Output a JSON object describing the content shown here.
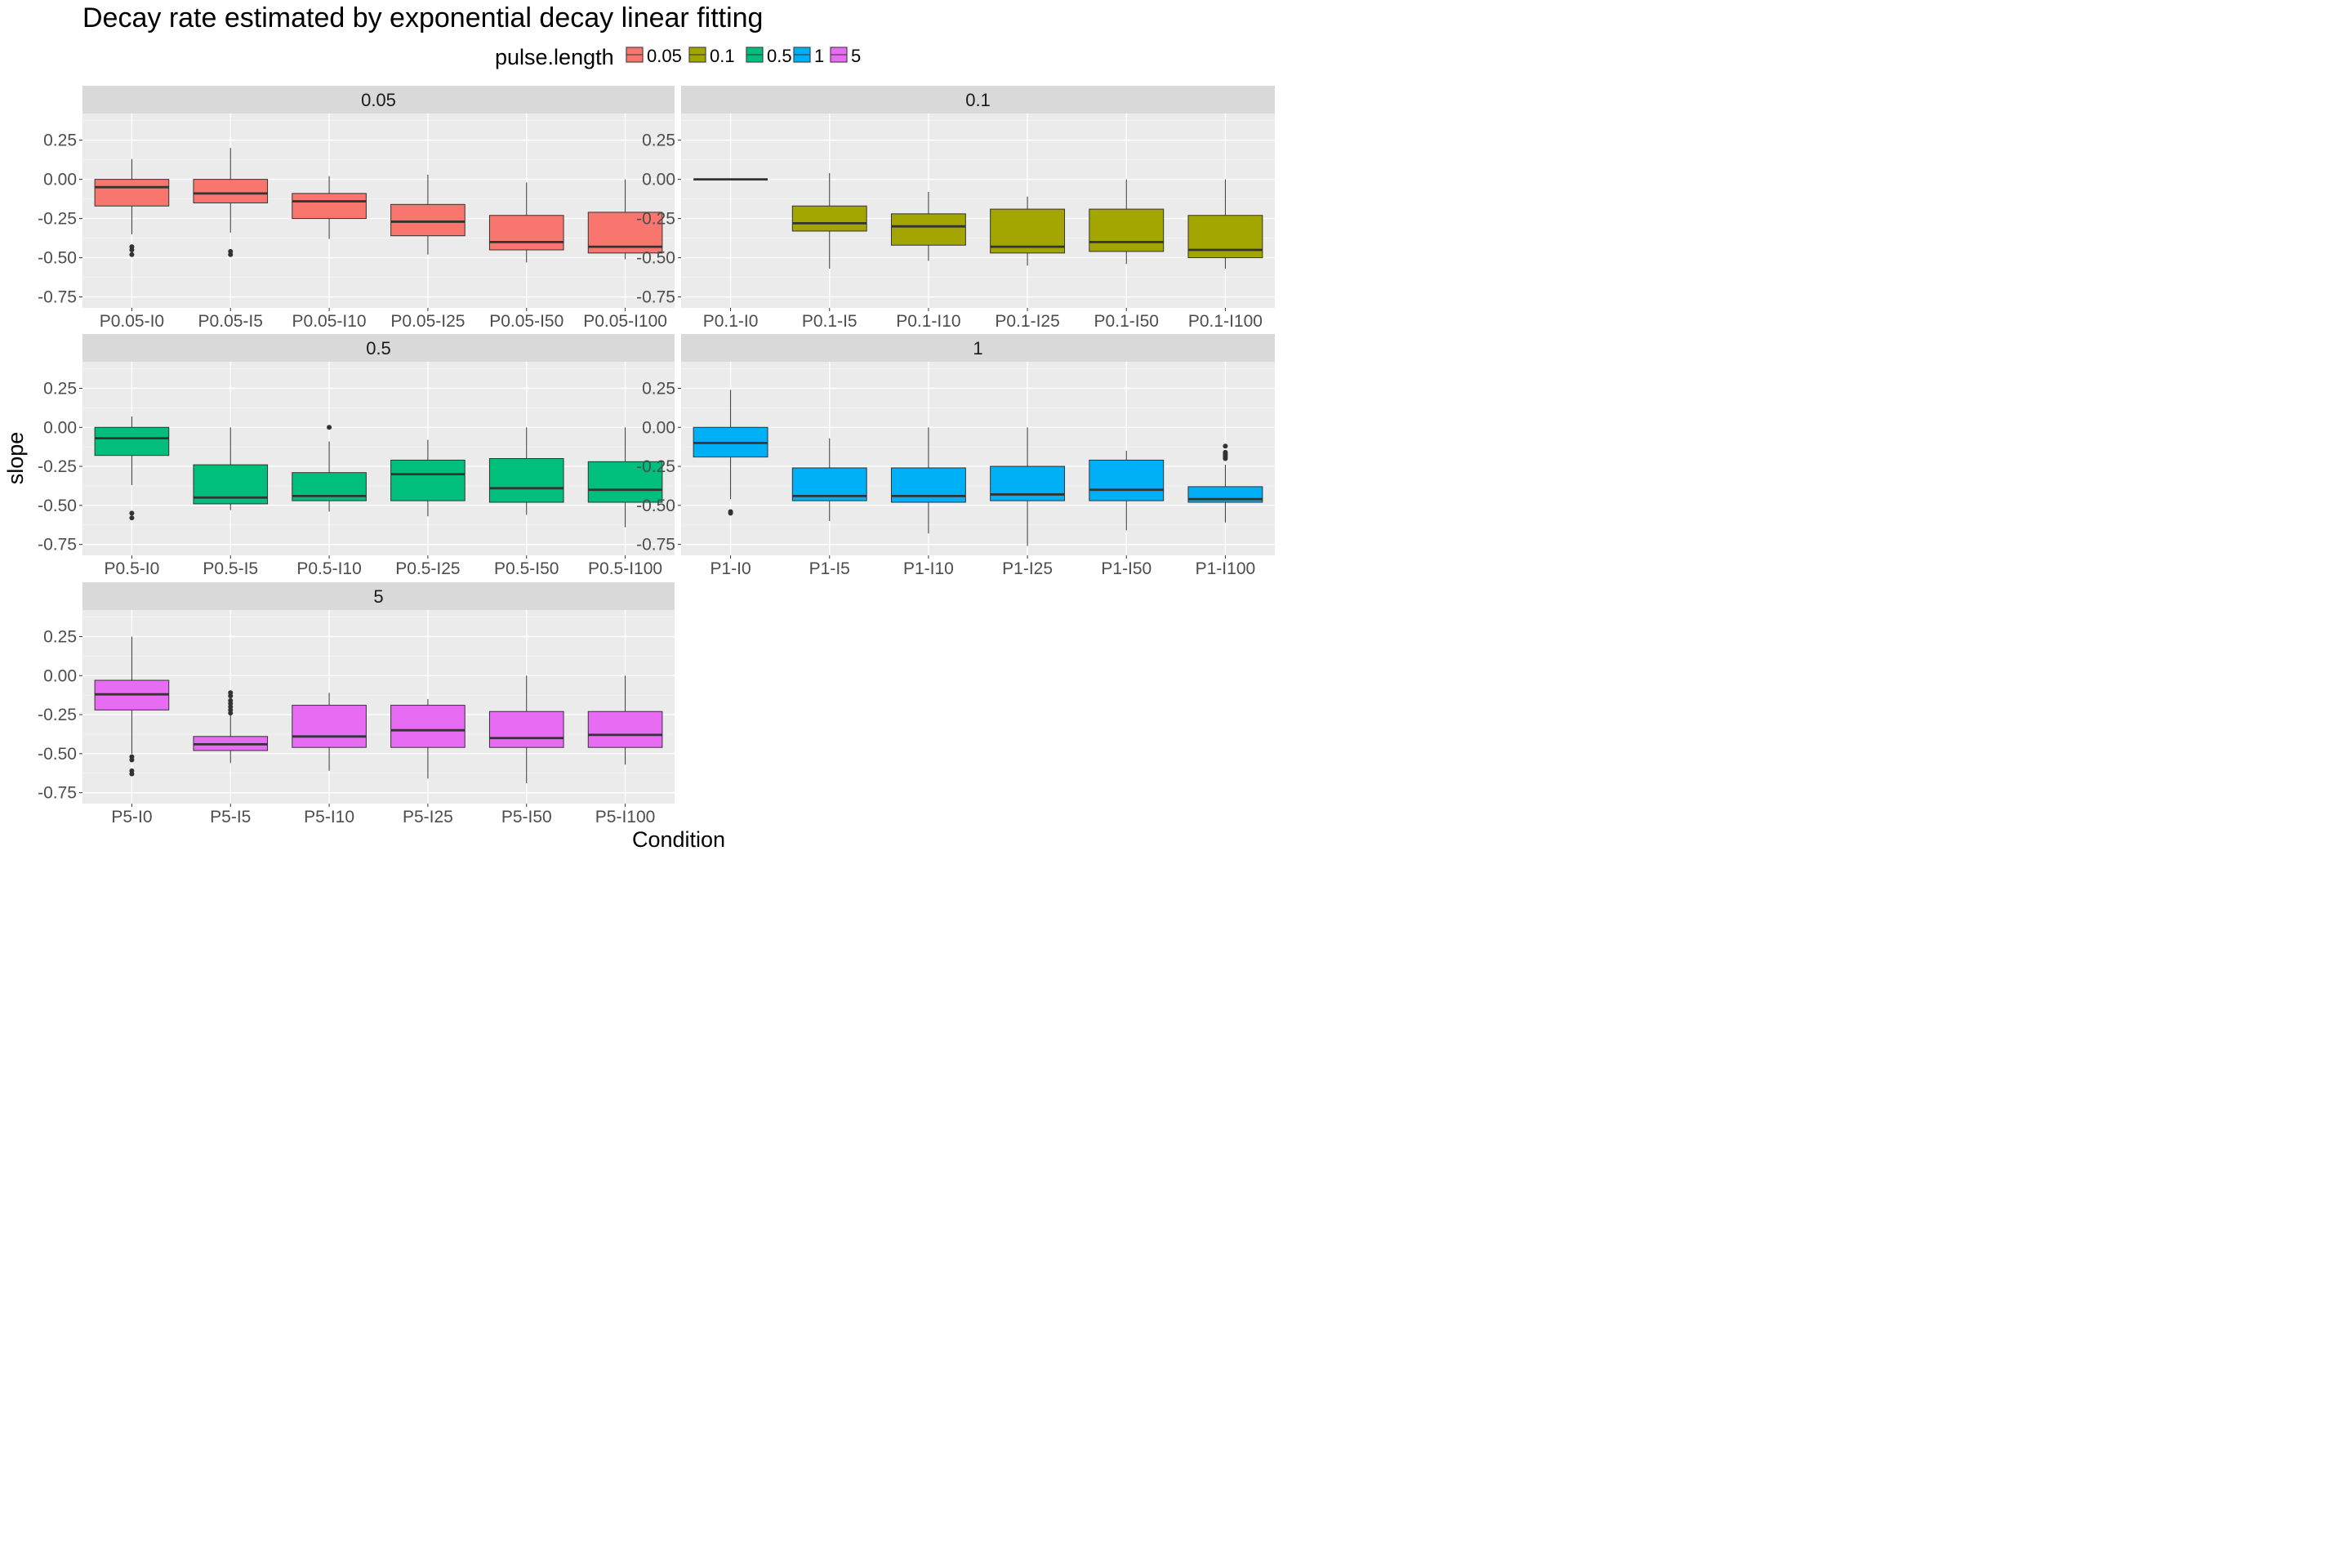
{
  "chart_data": {
    "type": "boxplot",
    "title": "Decay rate estimated by exponential decay linear fitting",
    "xlabel": "Condition",
    "ylabel": "slope",
    "ylim": [
      -0.82,
      0.42
    ],
    "yticks": [
      0.25,
      0.0,
      -0.25,
      -0.5,
      -0.75
    ],
    "ytick_labels": [
      "0.25",
      "0.00",
      "-0.25",
      "-0.50",
      "-0.75"
    ],
    "grid": true,
    "legend": {
      "title": "pulse.length",
      "position": "top",
      "entries": [
        {
          "label": "0.05",
          "color": "#F8766D"
        },
        {
          "label": "0.1",
          "color": "#A3A500"
        },
        {
          "label": "0.5",
          "color": "#00BF7D"
        },
        {
          "label": "1",
          "color": "#00B0F6"
        },
        {
          "label": "5",
          "color": "#E76BF3"
        }
      ]
    },
    "facets": [
      {
        "strip": "0.05",
        "color": "#F8766D",
        "categories": [
          "P0.05-I0",
          "P0.05-I5",
          "P0.05-I10",
          "P0.05-I25",
          "P0.05-I50",
          "P0.05-I100"
        ],
        "boxes": [
          {
            "lower_whisker": -0.35,
            "q1": -0.17,
            "median": -0.05,
            "q3": 0.0,
            "upper_whisker": 0.13,
            "outliers": [
              -0.43,
              -0.45,
              -0.48
            ]
          },
          {
            "lower_whisker": -0.34,
            "q1": -0.15,
            "median": -0.09,
            "q3": 0.0,
            "upper_whisker": 0.2,
            "outliers": [
              -0.46,
              -0.48
            ]
          },
          {
            "lower_whisker": -0.38,
            "q1": -0.25,
            "median": -0.14,
            "q3": -0.09,
            "upper_whisker": 0.02,
            "outliers": []
          },
          {
            "lower_whisker": -0.48,
            "q1": -0.36,
            "median": -0.27,
            "q3": -0.16,
            "upper_whisker": 0.03,
            "outliers": []
          },
          {
            "lower_whisker": -0.53,
            "q1": -0.45,
            "median": -0.4,
            "q3": -0.23,
            "upper_whisker": -0.02,
            "outliers": []
          },
          {
            "lower_whisker": -0.51,
            "q1": -0.47,
            "median": -0.43,
            "q3": -0.21,
            "upper_whisker": 0.0,
            "outliers": []
          }
        ]
      },
      {
        "strip": "0.1",
        "color": "#A3A500",
        "categories": [
          "P0.1-I0",
          "P0.1-I5",
          "P0.1-I10",
          "P0.1-I25",
          "P0.1-I50",
          "P0.1-I100"
        ],
        "boxes": [
          {
            "lower_whisker": 0.0,
            "q1": 0.0,
            "median": 0.0,
            "q3": 0.0,
            "upper_whisker": 0.0,
            "outliers": []
          },
          {
            "lower_whisker": -0.57,
            "q1": -0.33,
            "median": -0.28,
            "q3": -0.17,
            "upper_whisker": 0.04,
            "outliers": []
          },
          {
            "lower_whisker": -0.52,
            "q1": -0.42,
            "median": -0.3,
            "q3": -0.22,
            "upper_whisker": -0.08,
            "outliers": []
          },
          {
            "lower_whisker": -0.55,
            "q1": -0.47,
            "median": -0.43,
            "q3": -0.19,
            "upper_whisker": -0.11,
            "outliers": []
          },
          {
            "lower_whisker": -0.54,
            "q1": -0.46,
            "median": -0.4,
            "q3": -0.19,
            "upper_whisker": 0.0,
            "outliers": []
          },
          {
            "lower_whisker": -0.57,
            "q1": -0.5,
            "median": -0.45,
            "q3": -0.23,
            "upper_whisker": 0.0,
            "outliers": []
          }
        ]
      },
      {
        "strip": "0.5",
        "color": "#00BF7D",
        "categories": [
          "P0.5-I0",
          "P0.5-I5",
          "P0.5-I10",
          "P0.5-I25",
          "P0.5-I50",
          "P0.5-I100"
        ],
        "boxes": [
          {
            "lower_whisker": -0.37,
            "q1": -0.18,
            "median": -0.07,
            "q3": 0.0,
            "upper_whisker": 0.07,
            "outliers": [
              -0.55,
              -0.58
            ]
          },
          {
            "lower_whisker": -0.53,
            "q1": -0.49,
            "median": -0.45,
            "q3": -0.24,
            "upper_whisker": 0.0,
            "outliers": []
          },
          {
            "lower_whisker": -0.54,
            "q1": -0.47,
            "median": -0.44,
            "q3": -0.29,
            "upper_whisker": -0.09,
            "outliers": [
              0.0
            ]
          },
          {
            "lower_whisker": -0.57,
            "q1": -0.47,
            "median": -0.3,
            "q3": -0.21,
            "upper_whisker": -0.08,
            "outliers": []
          },
          {
            "lower_whisker": -0.56,
            "q1": -0.48,
            "median": -0.39,
            "q3": -0.2,
            "upper_whisker": 0.0,
            "outliers": []
          },
          {
            "lower_whisker": -0.64,
            "q1": -0.48,
            "median": -0.4,
            "q3": -0.22,
            "upper_whisker": 0.0,
            "outliers": []
          }
        ]
      },
      {
        "strip": "1",
        "color": "#00B0F6",
        "categories": [
          "P1-I0",
          "P1-I5",
          "P1-I10",
          "P1-I25",
          "P1-I50",
          "P1-I100"
        ],
        "boxes": [
          {
            "lower_whisker": -0.46,
            "q1": -0.19,
            "median": -0.1,
            "q3": 0.0,
            "upper_whisker": 0.24,
            "outliers": [
              -0.54,
              -0.55
            ]
          },
          {
            "lower_whisker": -0.6,
            "q1": -0.47,
            "median": -0.44,
            "q3": -0.26,
            "upper_whisker": -0.07,
            "outliers": []
          },
          {
            "lower_whisker": -0.68,
            "q1": -0.48,
            "median": -0.44,
            "q3": -0.26,
            "upper_whisker": 0.0,
            "outliers": []
          },
          {
            "lower_whisker": -0.76,
            "q1": -0.47,
            "median": -0.43,
            "q3": -0.25,
            "upper_whisker": 0.0,
            "outliers": []
          },
          {
            "lower_whisker": -0.66,
            "q1": -0.47,
            "median": -0.4,
            "q3": -0.21,
            "upper_whisker": -0.15,
            "outliers": []
          },
          {
            "lower_whisker": -0.61,
            "q1": -0.48,
            "median": -0.46,
            "q3": -0.38,
            "upper_whisker": -0.24,
            "outliers": [
              -0.12,
              -0.16,
              -0.17,
              -0.18,
              -0.19,
              -0.2
            ]
          }
        ]
      },
      {
        "strip": "5",
        "color": "#E76BF3",
        "categories": [
          "P5-I0",
          "P5-I5",
          "P5-I10",
          "P5-I25",
          "P5-I50",
          "P5-I100"
        ],
        "boxes": [
          {
            "lower_whisker": -0.5,
            "q1": -0.22,
            "median": -0.12,
            "q3": -0.03,
            "upper_whisker": 0.25,
            "outliers": [
              -0.52,
              -0.54,
              -0.61,
              -0.63
            ]
          },
          {
            "lower_whisker": -0.56,
            "q1": -0.48,
            "median": -0.44,
            "q3": -0.39,
            "upper_whisker": -0.25,
            "outliers": [
              -0.11,
              -0.13,
              -0.16,
              -0.18,
              -0.2,
              -0.22,
              -0.24
            ]
          },
          {
            "lower_whisker": -0.61,
            "q1": -0.46,
            "median": -0.39,
            "q3": -0.19,
            "upper_whisker": -0.11,
            "outliers": []
          },
          {
            "lower_whisker": -0.66,
            "q1": -0.46,
            "median": -0.35,
            "q3": -0.19,
            "upper_whisker": -0.15,
            "outliers": []
          },
          {
            "lower_whisker": -0.69,
            "q1": -0.46,
            "median": -0.4,
            "q3": -0.23,
            "upper_whisker": 0.0,
            "outliers": []
          },
          {
            "lower_whisker": -0.57,
            "q1": -0.46,
            "median": -0.38,
            "q3": -0.23,
            "upper_whisker": 0.0,
            "outliers": []
          }
        ]
      }
    ]
  }
}
